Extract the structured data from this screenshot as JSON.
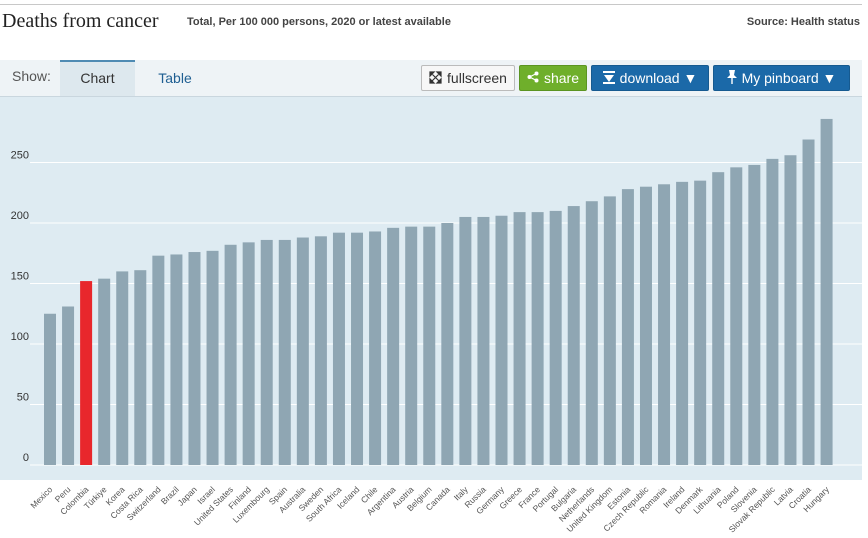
{
  "header": {
    "title": "Deaths from cancer",
    "subtitle": "Total, Per 100 000 persons, 2020 or latest available",
    "source": "Source: Health status"
  },
  "toolbar": {
    "show_label": "Show:",
    "tabs": [
      {
        "label": "Chart",
        "active": true
      },
      {
        "label": "Table",
        "active": false
      }
    ],
    "fullscreen_label": "fullscreen",
    "share_label": "share",
    "download_label": "download ▼",
    "pinboard_label": "My pinboard ▼",
    "icons": [
      "expand-arrows-icon",
      "share-nodes-icon",
      "download-arrow-icon",
      "pin-icon"
    ]
  },
  "colors": {
    "bar": "#8fa6b3",
    "highlight": "#e8272c",
    "plot_background": "#deebf2",
    "gridline": "#ffffff",
    "highlight_label": "#e8272c"
  },
  "chart_data": {
    "type": "bar",
    "title": "Deaths from cancer",
    "xlabel": "",
    "ylabel": "",
    "ylim": [
      0,
      285
    ],
    "yticks": [
      0,
      50,
      100,
      150,
      200,
      250
    ],
    "grid": true,
    "highlight": "Colombia",
    "categories": [
      "Mexico",
      "Peru",
      "Colombia",
      "Türkiye",
      "Korea",
      "Costa Rica",
      "Switzerland",
      "Brazil",
      "Japan",
      "Israel",
      "United States",
      "Finland",
      "Luxembourg",
      "Spain",
      "Australia",
      "Sweden",
      "South Africa",
      "Iceland",
      "Chile",
      "Argentina",
      "Austria",
      "Belgium",
      "Canada",
      "Italy",
      "Russia",
      "Germany",
      "Greece",
      "France",
      "Portugal",
      "Bulgaria",
      "Netherlands",
      "United Kingdom",
      "Estonia",
      "Czech Republic",
      "Romania",
      "Ireland",
      "Denmark",
      "Lithuania",
      "Poland",
      "Slovenia",
      "Slovak Republic",
      "Latvia",
      "Croatia",
      "Hungary"
    ],
    "values": [
      125,
      131,
      152,
      154,
      160,
      161,
      173,
      174,
      176,
      177,
      182,
      184,
      186,
      186,
      188,
      189,
      192,
      192,
      193,
      196,
      197,
      197,
      200,
      205,
      205,
      206,
      209,
      209,
      210,
      214,
      218,
      222,
      228,
      230,
      232,
      234,
      235,
      242,
      246,
      248,
      253,
      256,
      269,
      286
    ]
  }
}
